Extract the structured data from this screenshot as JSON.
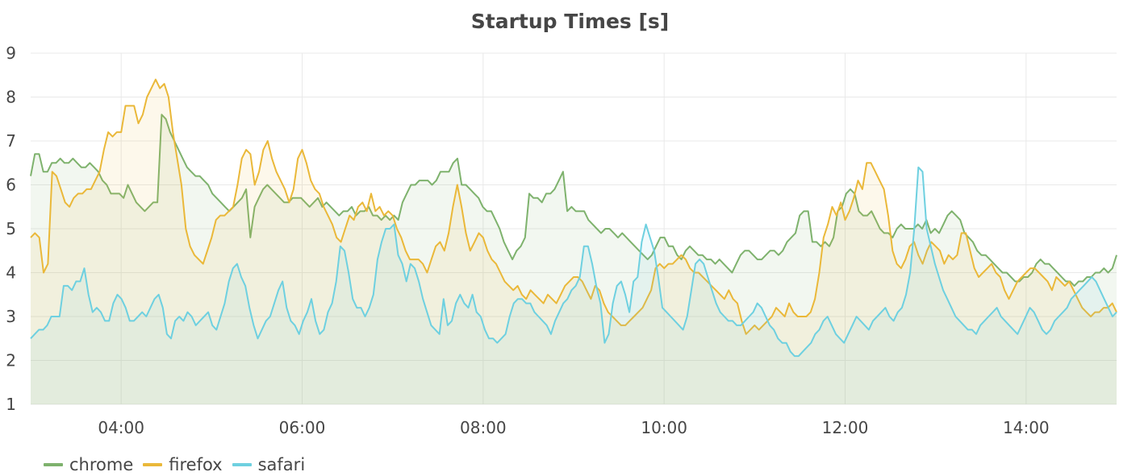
{
  "chart_data": {
    "type": "line",
    "title": "Startup Times [s]",
    "xlabel": "",
    "ylabel": "",
    "x_start": "03:00",
    "x_end": "15:00",
    "xlim": [
      "03:00",
      "15:00"
    ],
    "ylim": [
      1,
      9
    ],
    "x_ticks": [
      "04:00",
      "06:00",
      "08:00",
      "10:00",
      "12:00",
      "14:00"
    ],
    "y_ticks": [
      "1",
      "2",
      "3",
      "4",
      "5",
      "6",
      "7",
      "8",
      "9"
    ],
    "grid": true,
    "fill": true,
    "legend_position": "bottom-left",
    "series": [
      {
        "name": "chrome",
        "color": "#7eb26d",
        "values": [
          6.2,
          6.7,
          6.7,
          6.3,
          6.3,
          6.5,
          6.5,
          6.6,
          6.5,
          6.5,
          6.6,
          6.5,
          6.4,
          6.4,
          6.5,
          6.4,
          6.3,
          6.1,
          6.0,
          5.8,
          5.8,
          5.8,
          5.7,
          6.0,
          5.8,
          5.6,
          5.5,
          5.4,
          5.5,
          5.6,
          5.6,
          7.6,
          7.5,
          7.2,
          7.0,
          6.8,
          6.6,
          6.4,
          6.3,
          6.2,
          6.2,
          6.1,
          6.0,
          5.8,
          5.7,
          5.6,
          5.5,
          5.4,
          5.5,
          5.6,
          5.7,
          5.9,
          4.8,
          5.5,
          5.7,
          5.9,
          6.0,
          5.9,
          5.8,
          5.7,
          5.6,
          5.6,
          5.7,
          5.7,
          5.7,
          5.6,
          5.5,
          5.6,
          5.7,
          5.5,
          5.6,
          5.5,
          5.4,
          5.3,
          5.4,
          5.4,
          5.5,
          5.3,
          5.4,
          5.4,
          5.5,
          5.3,
          5.3,
          5.2,
          5.3,
          5.2,
          5.3,
          5.2,
          5.6,
          5.8,
          6.0,
          6.0,
          6.1,
          6.1,
          6.1,
          6.0,
          6.1,
          6.3,
          6.3,
          6.3,
          6.5,
          6.6,
          6.0,
          6.0,
          5.9,
          5.8,
          5.7,
          5.5,
          5.4,
          5.4,
          5.2,
          5.0,
          4.7,
          4.5,
          4.3,
          4.5,
          4.6,
          4.8,
          5.8,
          5.7,
          5.7,
          5.6,
          5.8,
          5.8,
          5.9,
          6.1,
          6.3,
          5.4,
          5.5,
          5.4,
          5.4,
          5.4,
          5.2,
          5.1,
          5.0,
          4.9,
          5.0,
          5.0,
          4.9,
          4.8,
          4.9,
          4.8,
          4.7,
          4.6,
          4.5,
          4.4,
          4.3,
          4.4,
          4.6,
          4.8,
          4.8,
          4.6,
          4.6,
          4.4,
          4.3,
          4.5,
          4.6,
          4.5,
          4.4,
          4.4,
          4.3,
          4.3,
          4.2,
          4.3,
          4.2,
          4.1,
          4.0,
          4.2,
          4.4,
          4.5,
          4.5,
          4.4,
          4.3,
          4.3,
          4.4,
          4.5,
          4.5,
          4.4,
          4.5,
          4.7,
          4.8,
          4.9,
          5.3,
          5.4,
          5.4,
          4.7,
          4.7,
          4.6,
          4.7,
          4.6,
          4.8,
          5.4,
          5.5,
          5.8,
          5.9,
          5.8,
          5.4,
          5.3,
          5.3,
          5.4,
          5.2,
          5.0,
          4.9,
          4.9,
          4.8,
          5.0,
          5.1,
          5.0,
          5.0,
          5.0,
          5.1,
          5.0,
          5.2,
          4.9,
          5.0,
          4.9,
          5.1,
          5.3,
          5.4,
          5.3,
          5.2,
          4.9,
          4.8,
          4.7,
          4.5,
          4.4,
          4.4,
          4.3,
          4.2,
          4.1,
          4.0,
          4.0,
          3.9,
          3.8,
          3.8,
          3.9,
          3.9,
          4.0,
          4.2,
          4.3,
          4.2,
          4.2,
          4.1,
          4.0,
          3.9,
          3.8,
          3.8,
          3.7,
          3.8,
          3.8,
          3.9,
          3.9,
          4.0,
          4.0,
          4.1,
          4.0,
          4.1,
          4.4
        ]
      },
      {
        "name": "firefox",
        "color": "#eab839",
        "values": [
          4.8,
          4.9,
          4.8,
          4.0,
          4.2,
          6.3,
          6.2,
          5.9,
          5.6,
          5.5,
          5.7,
          5.8,
          5.8,
          5.9,
          5.9,
          6.1,
          6.3,
          6.8,
          7.2,
          7.1,
          7.2,
          7.2,
          7.8,
          7.8,
          7.8,
          7.4,
          7.6,
          8.0,
          8.2,
          8.4,
          8.2,
          8.3,
          8.0,
          7.2,
          6.6,
          6.0,
          5.0,
          4.6,
          4.4,
          4.3,
          4.2,
          4.5,
          4.8,
          5.2,
          5.3,
          5.3,
          5.4,
          5.5,
          6.0,
          6.6,
          6.8,
          6.7,
          6.0,
          6.3,
          6.8,
          7.0,
          6.6,
          6.3,
          6.1,
          5.9,
          5.6,
          5.9,
          6.6,
          6.8,
          6.5,
          6.1,
          5.9,
          5.8,
          5.5,
          5.3,
          5.1,
          4.8,
          4.7,
          5.0,
          5.3,
          5.2,
          5.5,
          5.6,
          5.4,
          5.8,
          5.4,
          5.5,
          5.3,
          5.4,
          5.3,
          5.0,
          4.8,
          4.5,
          4.3,
          4.3,
          4.3,
          4.2,
          4.0,
          4.3,
          4.6,
          4.7,
          4.5,
          4.9,
          5.5,
          6.0,
          5.5,
          4.9,
          4.5,
          4.7,
          4.9,
          4.8,
          4.5,
          4.3,
          4.2,
          4.0,
          3.8,
          3.7,
          3.6,
          3.7,
          3.5,
          3.4,
          3.6,
          3.5,
          3.4,
          3.3,
          3.5,
          3.4,
          3.3,
          3.5,
          3.7,
          3.8,
          3.9,
          3.9,
          3.8,
          3.6,
          3.4,
          3.7,
          3.6,
          3.3,
          3.1,
          3.0,
          2.9,
          2.8,
          2.8,
          2.9,
          3.0,
          3.1,
          3.2,
          3.4,
          3.6,
          4.1,
          4.2,
          4.1,
          4.2,
          4.2,
          4.3,
          4.4,
          4.3,
          4.1,
          4.0,
          4.0,
          3.9,
          3.8,
          3.7,
          3.6,
          3.5,
          3.4,
          3.6,
          3.4,
          3.3,
          2.9,
          2.6,
          2.7,
          2.8,
          2.7,
          2.8,
          2.9,
          3.0,
          3.2,
          3.1,
          3.0,
          3.3,
          3.1,
          3.0,
          3.0,
          3.0,
          3.1,
          3.4,
          4.0,
          4.8,
          5.1,
          5.5,
          5.3,
          5.6,
          5.2,
          5.4,
          5.7,
          6.1,
          5.9,
          6.5,
          6.5,
          6.3,
          6.1,
          5.9,
          5.3,
          4.5,
          4.2,
          4.1,
          4.3,
          4.6,
          4.7,
          4.4,
          4.2,
          4.5,
          4.7,
          4.6,
          4.5,
          4.2,
          4.4,
          4.3,
          4.4,
          4.9,
          4.9,
          4.5,
          4.1,
          3.9,
          4.0,
          4.1,
          4.2,
          4.0,
          3.9,
          3.6,
          3.4,
          3.6,
          3.8,
          3.9,
          4.0,
          4.1,
          4.1,
          4.0,
          3.9,
          3.8,
          3.6,
          3.9,
          3.8,
          3.7,
          3.8,
          3.6,
          3.4,
          3.2,
          3.1,
          3.0,
          3.1,
          3.1,
          3.2,
          3.2,
          3.3,
          3.1
        ]
      },
      {
        "name": "safari",
        "color": "#6ed0e0",
        "values": [
          2.5,
          2.6,
          2.7,
          2.7,
          2.8,
          3.0,
          3.0,
          3.0,
          3.7,
          3.7,
          3.6,
          3.8,
          3.8,
          4.1,
          3.5,
          3.1,
          3.2,
          3.1,
          2.9,
          2.9,
          3.3,
          3.5,
          3.4,
          3.2,
          2.9,
          2.9,
          3.0,
          3.1,
          3.0,
          3.2,
          3.4,
          3.5,
          3.2,
          2.6,
          2.5,
          2.9,
          3.0,
          2.9,
          3.1,
          3.0,
          2.8,
          2.9,
          3.0,
          3.1,
          2.8,
          2.7,
          3.0,
          3.3,
          3.8,
          4.1,
          4.2,
          3.9,
          3.7,
          3.2,
          2.8,
          2.5,
          2.7,
          2.9,
          3.0,
          3.3,
          3.6,
          3.8,
          3.2,
          2.9,
          2.8,
          2.6,
          2.9,
          3.1,
          3.4,
          2.9,
          2.6,
          2.7,
          3.1,
          3.3,
          3.8,
          4.6,
          4.5,
          4.0,
          3.4,
          3.2,
          3.2,
          3.0,
          3.2,
          3.5,
          4.3,
          4.7,
          5.0,
          5.0,
          5.1,
          4.4,
          4.2,
          3.8,
          4.2,
          4.1,
          3.8,
          3.4,
          3.1,
          2.8,
          2.7,
          2.6,
          3.4,
          2.8,
          2.9,
          3.3,
          3.5,
          3.3,
          3.2,
          3.5,
          3.1,
          3.0,
          2.7,
          2.5,
          2.5,
          2.4,
          2.5,
          2.6,
          3.0,
          3.3,
          3.4,
          3.4,
          3.3,
          3.3,
          3.1,
          3.0,
          2.9,
          2.8,
          2.6,
          2.9,
          3.1,
          3.3,
          3.4,
          3.6,
          3.7,
          3.9,
          4.6,
          4.6,
          4.2,
          3.7,
          3.3,
          2.4,
          2.6,
          3.3,
          3.7,
          3.8,
          3.5,
          3.1,
          3.8,
          3.9,
          4.7,
          5.1,
          4.8,
          4.5,
          3.9,
          3.2,
          3.1,
          3.0,
          2.9,
          2.8,
          2.7,
          3.0,
          3.6,
          4.2,
          4.3,
          4.2,
          3.9,
          3.6,
          3.3,
          3.1,
          3.0,
          2.9,
          2.9,
          2.8,
          2.8,
          2.9,
          3.0,
          3.1,
          3.3,
          3.2,
          3.0,
          2.8,
          2.7,
          2.5,
          2.4,
          2.4,
          2.2,
          2.1,
          2.1,
          2.2,
          2.3,
          2.4,
          2.6,
          2.7,
          2.9,
          3.0,
          2.8,
          2.6,
          2.5,
          2.4,
          2.6,
          2.8,
          3.0,
          2.9,
          2.8,
          2.7,
          2.9,
          3.0,
          3.1,
          3.2,
          3.0,
          2.9,
          3.1,
          3.2,
          3.5,
          4.0,
          5.0,
          6.4,
          6.3,
          5.0,
          4.6,
          4.2,
          3.9,
          3.6,
          3.4,
          3.2,
          3.0,
          2.9,
          2.8,
          2.7,
          2.7,
          2.6,
          2.8,
          2.9,
          3.0,
          3.1,
          3.2,
          3.0,
          2.9,
          2.8,
          2.7,
          2.6,
          2.8,
          3.0,
          3.2,
          3.1,
          2.9,
          2.7,
          2.6,
          2.7,
          2.9,
          3.0,
          3.1,
          3.2,
          3.4,
          3.5,
          3.6,
          3.7,
          3.8,
          3.9,
          3.8,
          3.6,
          3.4,
          3.2,
          3.0,
          3.1
        ]
      }
    ]
  }
}
